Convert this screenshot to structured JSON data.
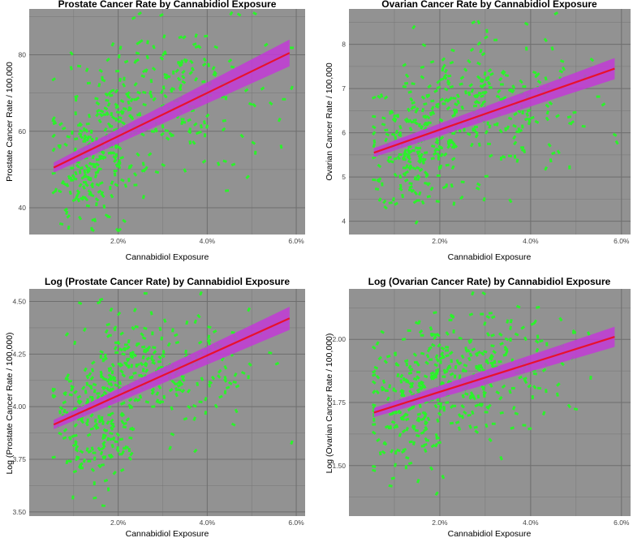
{
  "colors": {
    "panel_bg": "#929292",
    "grid": "#6e6e6e",
    "points": "#2bf22b",
    "ci_band": "#c23ad6",
    "fit_line": "#e8112d"
  },
  "chart_data": [
    {
      "type": "scatter",
      "title": "Prostate Cancer Rate by Cannabidiol Exposure",
      "xlabel": "Cannabidiol Exposure",
      "ylabel": "Prostate Cancer Rate / 100,000",
      "xlim": [
        0.0,
        6.2
      ],
      "ylim": [
        33,
        92
      ],
      "xticks": [
        2,
        4,
        6
      ],
      "xtick_labels": [
        "2.0%",
        "4.0%",
        "6.0%"
      ],
      "yticks": [
        40,
        60,
        80
      ],
      "ytick_labels": [
        "40",
        "60",
        "80"
      ],
      "fit": {
        "x0": 0.55,
        "y0": 50.5,
        "x1": 5.85,
        "y1": 80.5,
        "ci0": 1.3,
        "ci1": 3.5
      },
      "points": {
        "n": 420,
        "seed": 11,
        "clusters": [
          {
            "w": 0.42,
            "mx": 1.45,
            "sx": 0.5,
            "my": 52,
            "sy": 8
          },
          {
            "w": 0.45,
            "mx": 2.7,
            "sx": 0.75,
            "my": 68,
            "sy": 9
          },
          {
            "w": 0.13,
            "mx": 4.1,
            "sx": 0.85,
            "my": 67,
            "sy": 10
          }
        ]
      }
    },
    {
      "type": "scatter",
      "title": "Ovarian Cancer Rate by Cannabidiol Exposure",
      "xlabel": "Cannabidiol Exposure",
      "ylabel": "Ovarian Cancer Rate / 100,000",
      "xlim": [
        0.0,
        6.2
      ],
      "ylim": [
        3.7,
        8.8
      ],
      "xticks": [
        2,
        4,
        6
      ],
      "xtick_labels": [
        "2.0%",
        "4.0%",
        "6.0%"
      ],
      "yticks": [
        4,
        5,
        6,
        7,
        8
      ],
      "ytick_labels": [
        "4",
        "5",
        "6",
        "7",
        "8"
      ],
      "fit": {
        "x0": 0.55,
        "y0": 5.55,
        "x1": 5.85,
        "y1": 7.45,
        "ci0": 0.1,
        "ci1": 0.24
      },
      "points": {
        "n": 420,
        "seed": 23,
        "clusters": [
          {
            "w": 0.42,
            "mx": 1.45,
            "sx": 0.5,
            "my": 5.7,
            "sy": 0.65
          },
          {
            "w": 0.45,
            "mx": 2.7,
            "sx": 0.75,
            "my": 6.6,
            "sy": 0.75
          },
          {
            "w": 0.13,
            "mx": 4.1,
            "sx": 0.85,
            "my": 6.6,
            "sy": 0.85
          }
        ]
      }
    },
    {
      "type": "scatter",
      "title": "Log (Prostate Cancer Rate) by Cannabidiol Exposure",
      "xlabel": "Cannabidiol Exposure",
      "ylabel": "Log (Prostate Cancer Rate / 100,000)",
      "xlim": [
        0.0,
        6.2
      ],
      "ylim": [
        3.48,
        4.56
      ],
      "xticks": [
        2,
        4,
        6
      ],
      "xtick_labels": [
        "2.0%",
        "4.0%",
        "6.0%"
      ],
      "yticks": [
        3.5,
        3.75,
        4.0,
        4.25,
        4.5
      ],
      "ytick_labels": [
        "3.50",
        "3.75",
        "4.00",
        "4.25",
        "4.50"
      ],
      "fit": {
        "x0": 0.55,
        "y0": 3.915,
        "x1": 5.85,
        "y1": 4.42,
        "ci0": 0.022,
        "ci1": 0.055
      },
      "points": {
        "n": 420,
        "seed": 37,
        "clusters": [
          {
            "w": 0.42,
            "mx": 1.45,
            "sx": 0.5,
            "my": 3.93,
            "sy": 0.15
          },
          {
            "w": 0.45,
            "mx": 2.7,
            "sx": 0.75,
            "my": 4.2,
            "sy": 0.14
          },
          {
            "w": 0.13,
            "mx": 4.1,
            "sx": 0.85,
            "my": 4.18,
            "sy": 0.16
          }
        ]
      }
    },
    {
      "type": "scatter",
      "title": "Log (Ovarian Cancer Rate) by Cannabidiol Exposure",
      "xlabel": "Cannabidiol Exposure",
      "ylabel": "Log (Ovarian Cancer Rate / 100,000)",
      "xlim": [
        0.0,
        6.2
      ],
      "ylim": [
        1.3,
        2.2
      ],
      "xticks": [
        2,
        4,
        6
      ],
      "xtick_labels": [
        "2.0%",
        "4.0%",
        "6.0%"
      ],
      "yticks": [
        1.5,
        1.75,
        2.0
      ],
      "ytick_labels": [
        "1.50",
        "1.75",
        "2.00"
      ],
      "fit": {
        "x0": 0.55,
        "y0": 1.71,
        "x1": 5.85,
        "y1": 2.01,
        "ci0": 0.018,
        "ci1": 0.04
      },
      "points": {
        "n": 420,
        "seed": 51,
        "clusters": [
          {
            "w": 0.42,
            "mx": 1.45,
            "sx": 0.5,
            "my": 1.74,
            "sy": 0.12
          },
          {
            "w": 0.45,
            "mx": 2.7,
            "sx": 0.75,
            "my": 1.88,
            "sy": 0.12
          },
          {
            "w": 0.13,
            "mx": 4.1,
            "sx": 0.85,
            "my": 1.88,
            "sy": 0.13
          }
        ]
      }
    }
  ]
}
